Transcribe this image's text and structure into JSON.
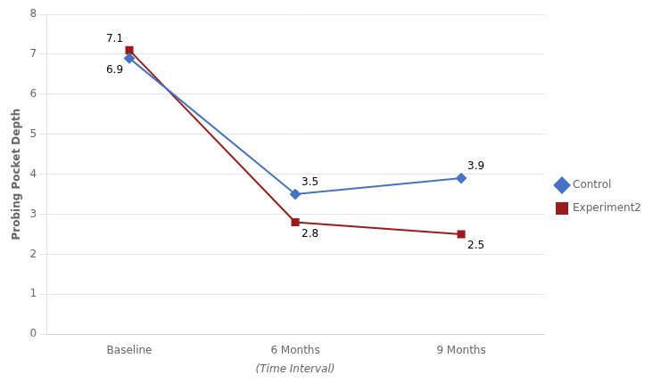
{
  "chart_data": {
    "type": "line",
    "categories": [
      "Baseline",
      "6 Months",
      "9 Months"
    ],
    "series": [
      {
        "name": "Control",
        "color": "#4472C4",
        "values": [
          6.9,
          3.5,
          3.9
        ],
        "marker": "diamond"
      },
      {
        "name": "Experiment2",
        "color": "#9B1C1C",
        "values": [
          7.1,
          2.8,
          2.5
        ],
        "marker": "square"
      }
    ],
    "xlabel": "(Time Interval)",
    "ylabel": "Probing Pocket Depth",
    "ylim": [
      0,
      8
    ],
    "yticks": [
      0,
      1,
      2,
      3,
      4,
      5,
      6,
      7,
      8
    ],
    "grid": true,
    "legend": "right",
    "data_labels": true
  }
}
